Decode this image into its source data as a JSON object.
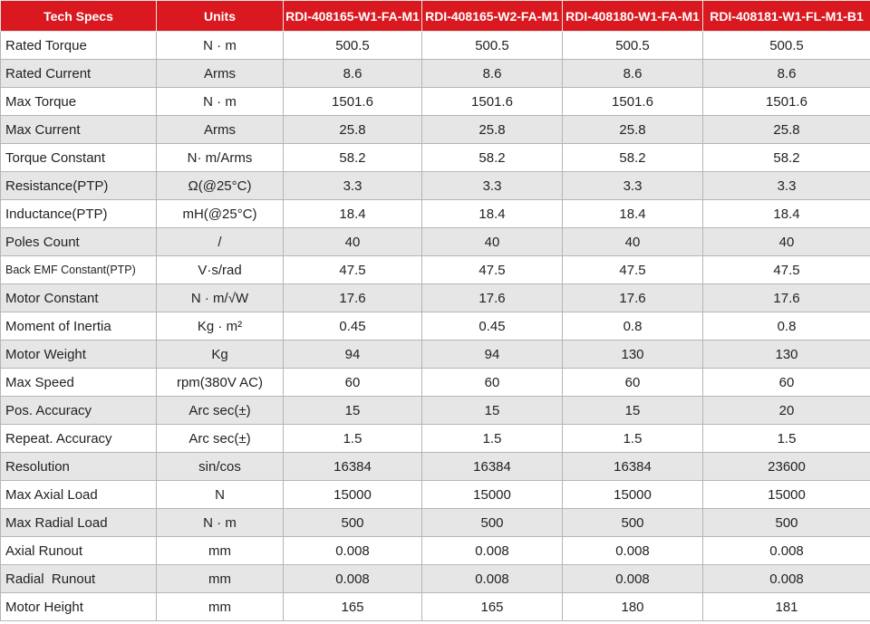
{
  "table": {
    "header": [
      "Tech Specs",
      "Units",
      "RDI-408165-W1-FA-M1",
      "RDI-408165-W2-FA-M1",
      "RDI-408180-W1-FA-M1",
      "RDI-408181-W1-FL-M1-B1"
    ],
    "rows": [
      [
        "Rated Torque",
        "N · m",
        "500.5",
        "500.5",
        "500.5",
        "500.5"
      ],
      [
        "Rated Current",
        "Arms",
        "8.6",
        "8.6",
        "8.6",
        "8.6"
      ],
      [
        "Max Torque",
        "N · m",
        "1501.6",
        "1501.6",
        "1501.6",
        "1501.6"
      ],
      [
        "Max Current",
        "Arms",
        "25.8",
        "25.8",
        "25.8",
        "25.8"
      ],
      [
        "Torque Constant",
        "N· m/Arms",
        "58.2",
        "58.2",
        "58.2",
        "58.2"
      ],
      [
        "Resistance(PTP)",
        "Ω(@25°C)",
        "3.3",
        "3.3",
        "3.3",
        "3.3"
      ],
      [
        "Inductance(PTP)",
        "mH(@25°C)",
        "18.4",
        "18.4",
        "18.4",
        "18.4"
      ],
      [
        "Poles Count",
        "/",
        "40",
        "40",
        "40",
        "40"
      ],
      [
        "Back EMF Constant(PTP)",
        "V·s/rad",
        "47.5",
        "47.5",
        "47.5",
        "47.5"
      ],
      [
        "Motor Constant",
        "N · m/√W",
        "17.6",
        "17.6",
        "17.6",
        "17.6"
      ],
      [
        "Moment of Inertia",
        "Kg · m²",
        "0.45",
        "0.45",
        "0.8",
        "0.8"
      ],
      [
        "Motor Weight",
        "Kg",
        "94",
        "94",
        "130",
        "130"
      ],
      [
        "Max Speed",
        "rpm(380V AC)",
        "60",
        "60",
        "60",
        "60"
      ],
      [
        "Pos. Accuracy",
        "Arc sec(±)",
        "15",
        "15",
        "15",
        "20"
      ],
      [
        "Repeat. Accuracy",
        "Arc sec(±)",
        "1.5",
        "1.5",
        "1.5",
        "1.5"
      ],
      [
        "Resolution",
        "sin/cos",
        "16384",
        "16384",
        "16384",
        "23600"
      ],
      [
        "Max Axial Load",
        "N",
        "15000",
        "15000",
        "15000",
        "15000"
      ],
      [
        "Max Radial Load",
        "N · m",
        "500",
        "500",
        "500",
        "500"
      ],
      [
        "Axial Runout",
        "mm",
        "0.008",
        "0.008",
        "0.008",
        "0.008"
      ],
      [
        "Radial  Runout",
        "mm",
        "0.008",
        "0.008",
        "0.008",
        "0.008"
      ],
      [
        "Motor Height",
        "mm",
        "165",
        "165",
        "180",
        "181"
      ]
    ]
  }
}
